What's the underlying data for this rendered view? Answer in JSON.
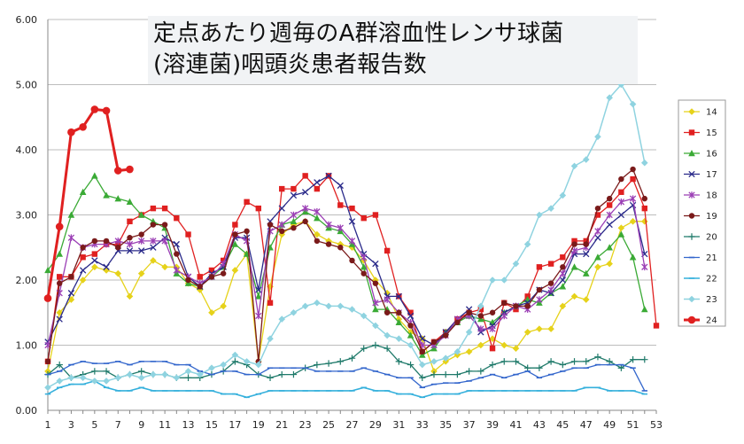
{
  "chart_data": {
    "type": "line",
    "title_line1": "定点あたり週毎のA群溶血性レンサ球菌",
    "title_line2": "(溶連菌)咽頭炎患者報告数",
    "xlabel": "",
    "ylabel": "",
    "ylim": [
      0,
      6
    ],
    "xlim": [
      1,
      53
    ],
    "grid": true,
    "y_ticks": [
      "0.00",
      "1.00",
      "2.00",
      "3.00",
      "4.00",
      "5.00",
      "6.00"
    ],
    "x_ticks": [
      "1",
      "3",
      "5",
      "7",
      "9",
      "11",
      "13",
      "15",
      "17",
      "19",
      "21",
      "23",
      "25",
      "27",
      "29",
      "31",
      "33",
      "35",
      "37",
      "39",
      "41",
      "43",
      "45",
      "47",
      "49",
      "51",
      "53"
    ],
    "series": [
      {
        "name": "14",
        "color": "#e6d21a",
        "marker": "diamond",
        "width": 1.3,
        "values": [
          0.6,
          1.5,
          1.7,
          2.0,
          2.2,
          2.15,
          2.1,
          1.75,
          2.1,
          2.3,
          2.2,
          2.2,
          1.95,
          1.85,
          1.5,
          1.6,
          2.15,
          2.4,
          0.75,
          1.9,
          2.7,
          2.85,
          2.9,
          2.7,
          2.6,
          2.55,
          2.5,
          2.3,
          2.0,
          1.8,
          1.4,
          1.2,
          1.1,
          0.6,
          0.75,
          0.85,
          0.9,
          1.0,
          1.1,
          1.0,
          0.95,
          1.2,
          1.25,
          1.25,
          1.6,
          1.75,
          1.7,
          2.2,
          2.25,
          2.8,
          2.9,
          2.9,
          null
        ]
      },
      {
        "name": "15",
        "color": "#e02020",
        "marker": "square",
        "width": 1.3,
        "values": [
          0.75,
          2.05,
          2.05,
          2.35,
          2.4,
          2.55,
          2.55,
          2.9,
          3.0,
          3.1,
          3.1,
          2.95,
          2.7,
          2.05,
          2.15,
          2.3,
          2.85,
          3.2,
          3.1,
          1.65,
          3.4,
          3.4,
          3.6,
          3.4,
          3.6,
          3.15,
          3.1,
          2.95,
          3.0,
          2.45,
          1.75,
          1.5,
          0.9,
          1.05,
          1.2,
          1.4,
          1.5,
          1.55,
          0.95,
          1.65,
          1.55,
          1.75,
          2.2,
          2.25,
          2.35,
          2.6,
          2.6,
          3.0,
          3.15,
          3.35,
          3.55,
          3.1,
          1.3
        ]
      },
      {
        "name": "16",
        "color": "#3aaa35",
        "marker": "triangle",
        "width": 1.3,
        "values": [
          2.15,
          2.4,
          3.0,
          3.35,
          3.6,
          3.3,
          3.25,
          3.2,
          3.0,
          2.9,
          2.8,
          2.1,
          1.95,
          1.9,
          2.05,
          2.2,
          2.55,
          2.4,
          1.75,
          2.5,
          2.85,
          2.9,
          3.05,
          2.95,
          2.8,
          2.75,
          2.55,
          2.2,
          1.55,
          1.55,
          1.35,
          1.15,
          0.85,
          0.95,
          1.2,
          1.35,
          1.45,
          1.4,
          1.35,
          1.5,
          1.6,
          1.7,
          1.65,
          1.8,
          1.9,
          2.2,
          2.1,
          2.35,
          2.5,
          2.7,
          2.35,
          1.55,
          null
        ]
      },
      {
        "name": "17",
        "color": "#2a2a8a",
        "marker": "x",
        "width": 1.3,
        "values": [
          1.05,
          1.4,
          1.8,
          2.15,
          2.3,
          2.2,
          2.45,
          2.45,
          2.45,
          2.5,
          2.65,
          2.55,
          2.05,
          1.9,
          2.1,
          2.2,
          2.65,
          2.65,
          1.85,
          2.9,
          3.1,
          3.3,
          3.35,
          3.5,
          3.6,
          3.45,
          2.9,
          2.4,
          2.25,
          1.75,
          1.75,
          1.45,
          1.1,
          1.0,
          1.2,
          1.4,
          1.55,
          1.2,
          1.3,
          1.5,
          1.6,
          1.65,
          1.85,
          1.8,
          2.0,
          2.4,
          2.4,
          2.65,
          2.85,
          3.0,
          3.15,
          2.4,
          null
        ]
      },
      {
        "name": "18",
        "color": "#9b3fb5",
        "marker": "asterisk",
        "width": 1.3,
        "values": [
          1.0,
          1.8,
          2.65,
          2.5,
          2.55,
          2.55,
          2.6,
          2.55,
          2.6,
          2.6,
          2.6,
          2.15,
          2.05,
          1.95,
          2.05,
          2.25,
          2.7,
          2.6,
          1.45,
          2.75,
          2.85,
          3.0,
          3.1,
          3.05,
          2.85,
          2.8,
          2.6,
          2.35,
          1.65,
          1.7,
          1.5,
          1.35,
          1.0,
          1.0,
          1.15,
          1.4,
          1.45,
          1.25,
          1.25,
          1.45,
          1.6,
          1.55,
          1.7,
          1.85,
          2.1,
          2.45,
          2.5,
          2.75,
          3.0,
          3.2,
          3.25,
          2.2,
          null
        ]
      },
      {
        "name": "19",
        "color": "#7a1a1a",
        "marker": "circle",
        "width": 1.3,
        "values": [
          0.75,
          1.95,
          2.05,
          2.5,
          2.6,
          2.6,
          2.5,
          2.65,
          2.7,
          2.85,
          2.85,
          2.4,
          2.0,
          1.9,
          2.05,
          2.1,
          2.7,
          2.75,
          0.75,
          2.85,
          2.75,
          2.8,
          2.9,
          2.6,
          2.55,
          2.5,
          2.3,
          2.1,
          1.95,
          1.5,
          1.5,
          1.3,
          0.9,
          1.05,
          1.15,
          1.35,
          1.5,
          1.45,
          1.5,
          1.65,
          1.6,
          1.6,
          1.85,
          1.95,
          2.2,
          2.55,
          2.55,
          3.1,
          3.25,
          3.55,
          3.7,
          3.25,
          null
        ]
      },
      {
        "name": "20",
        "color": "#1f7a6a",
        "marker": "plus",
        "width": 1.3,
        "values": [
          0.55,
          0.7,
          0.5,
          0.55,
          0.6,
          0.6,
          0.5,
          0.55,
          0.6,
          0.55,
          0.55,
          0.5,
          0.5,
          0.5,
          0.55,
          0.6,
          0.75,
          0.7,
          0.55,
          0.5,
          0.55,
          0.55,
          0.65,
          0.7,
          0.72,
          0.75,
          0.8,
          0.95,
          1.0,
          0.95,
          0.75,
          0.7,
          0.5,
          0.55,
          0.55,
          0.55,
          0.6,
          0.6,
          0.7,
          0.75,
          0.75,
          0.65,
          0.65,
          0.75,
          0.7,
          0.75,
          0.75,
          0.82,
          0.75,
          0.65,
          0.78,
          0.78,
          null
        ]
      },
      {
        "name": "21",
        "color": "#3366cc",
        "marker": "dash",
        "width": 1.3,
        "values": [
          0.55,
          0.6,
          0.7,
          0.75,
          0.72,
          0.72,
          0.75,
          0.7,
          0.75,
          0.75,
          0.75,
          0.7,
          0.7,
          0.6,
          0.55,
          0.6,
          0.6,
          0.55,
          0.55,
          0.65,
          0.65,
          0.65,
          0.65,
          0.6,
          0.6,
          0.6,
          0.6,
          0.65,
          0.6,
          0.55,
          0.5,
          0.5,
          0.35,
          0.4,
          0.42,
          0.42,
          0.45,
          0.5,
          0.55,
          0.5,
          0.55,
          0.6,
          0.5,
          0.55,
          0.6,
          0.65,
          0.65,
          0.7,
          0.7,
          0.7,
          0.65,
          0.3,
          null
        ]
      },
      {
        "name": "22",
        "color": "#35b0dc",
        "marker": "dash",
        "width": 1.6,
        "values": [
          0.25,
          0.35,
          0.4,
          0.4,
          0.45,
          0.35,
          0.3,
          0.3,
          0.35,
          0.3,
          0.3,
          0.3,
          0.3,
          0.3,
          0.3,
          0.25,
          0.25,
          0.2,
          0.25,
          0.3,
          0.3,
          0.3,
          0.3,
          0.3,
          0.3,
          0.3,
          0.3,
          0.35,
          0.3,
          0.3,
          0.25,
          0.25,
          0.2,
          0.25,
          0.25,
          0.25,
          0.3,
          0.3,
          0.3,
          0.3,
          0.3,
          0.3,
          0.3,
          0.3,
          0.3,
          0.3,
          0.35,
          0.35,
          0.3,
          0.3,
          0.3,
          0.25,
          null
        ]
      },
      {
        "name": "23",
        "color": "#8fd3e0",
        "marker": "diamond",
        "width": 1.5,
        "values": [
          0.35,
          0.45,
          0.5,
          0.5,
          0.45,
          0.45,
          0.5,
          0.55,
          0.5,
          0.55,
          0.55,
          0.5,
          0.6,
          0.55,
          0.65,
          0.7,
          0.85,
          0.75,
          0.7,
          1.1,
          1.4,
          1.5,
          1.6,
          1.65,
          1.6,
          1.6,
          1.55,
          1.45,
          1.3,
          1.15,
          1.1,
          1.0,
          0.7,
          0.75,
          0.8,
          0.9,
          1.2,
          1.6,
          2.0,
          2.0,
          2.25,
          2.55,
          3.0,
          3.1,
          3.3,
          3.75,
          3.85,
          4.2,
          4.8,
          5.0,
          4.7,
          3.8,
          null
        ]
      },
      {
        "name": "24",
        "color": "#e02020",
        "marker": "circle-big",
        "width": 3,
        "values": [
          1.72,
          2.82,
          4.27,
          4.35,
          4.62,
          4.6,
          3.68,
          3.7,
          null,
          null,
          null,
          null,
          null,
          null,
          null,
          null,
          null,
          null,
          null,
          null,
          null,
          null,
          null,
          null,
          null,
          null,
          null,
          null,
          null,
          null,
          null,
          null,
          null,
          null,
          null,
          null,
          null,
          null,
          null,
          null,
          null,
          null,
          null,
          null,
          null,
          null,
          null,
          null,
          null,
          null,
          null,
          null,
          null
        ]
      }
    ]
  }
}
